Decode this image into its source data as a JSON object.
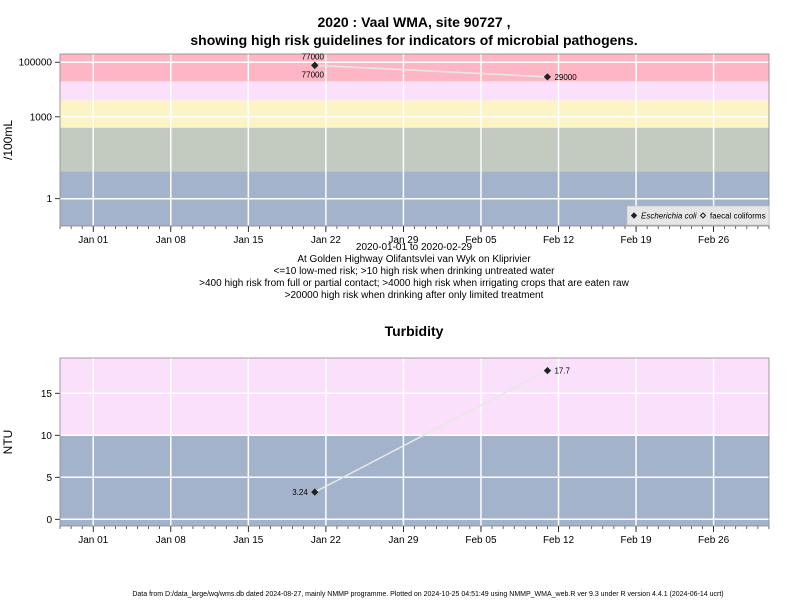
{
  "chart_data": [
    {
      "type": "line",
      "title_line1": "2020 : Vaal WMA, site 90727 ,",
      "title_line2": "showing high risk guidelines for indicators of microbial pathogens.",
      "ylabel": "/100mL",
      "yscale": "log",
      "ylim": [
        0.1,
        200000
      ],
      "yticks": [
        {
          "v": 1,
          "label": "1"
        },
        {
          "v": 1000,
          "label": "1000"
        },
        {
          "v": 100000,
          "label": "100000"
        }
      ],
      "xlim": [
        "2019-12-29",
        "2020-03-02"
      ],
      "xticks": [
        {
          "d": "2020-01-01",
          "label": "Jan 01"
        },
        {
          "d": "2020-01-08",
          "label": "Jan 08"
        },
        {
          "d": "2020-01-15",
          "label": "Jan 15"
        },
        {
          "d": "2020-01-22",
          "label": "Jan 22"
        },
        {
          "d": "2020-01-29",
          "label": "Jan 29"
        },
        {
          "d": "2020-02-05",
          "label": "Feb 05"
        },
        {
          "d": "2020-02-12",
          "label": "Feb 12"
        },
        {
          "d": "2020-02-19",
          "label": "Feb 19"
        },
        {
          "d": "2020-02-26",
          "label": "Feb 26"
        }
      ],
      "bands": [
        {
          "from": 0.1,
          "to": 10,
          "color": "#a3b3cb"
        },
        {
          "from": 10,
          "to": 400,
          "color": "#c3cbc1"
        },
        {
          "from": 400,
          "to": 4000,
          "color": "#fdf4c5"
        },
        {
          "from": 4000,
          "to": 20000,
          "color": "#fbe0fb"
        },
        {
          "from": 20000,
          "to": 200000,
          "color": "#feb6c5"
        }
      ],
      "series": [
        {
          "name": "Escherichia coli",
          "marker": "filled-diamond",
          "points": [
            {
              "d": "2020-01-21",
              "y": 77000,
              "label": "77000"
            },
            {
              "d": "2020-02-11",
              "y": 29000,
              "label": "29000"
            }
          ]
        },
        {
          "name": "faecal coliforms",
          "marker": "open-diamond",
          "points": [
            {
              "d": "2020-01-21",
              "y": 77000,
              "label": "77000"
            }
          ]
        }
      ],
      "legend_position": "bottom-right",
      "subtitle_lines": [
        "2020-01-01 to 2020-02-29",
        "At Golden Highway Olifantsvlei van Wyk on Kliprivier",
        "<=10 low-med risk; >10 high risk when drinking untreated water",
        ">400 high risk from full or partial contact; >4000 high risk when irrigating crops that are eaten raw",
        ">20000 high risk when drinking after only limited treatment"
      ]
    },
    {
      "type": "line",
      "title": "Turbidity",
      "ylabel": "NTU",
      "ylim": [
        -0.8,
        19.2
      ],
      "yticks": [
        {
          "v": 0,
          "label": "0"
        },
        {
          "v": 5,
          "label": "5"
        },
        {
          "v": 10,
          "label": "10"
        },
        {
          "v": 15,
          "label": "15"
        }
      ],
      "xlim": [
        "2019-12-29",
        "2020-03-02"
      ],
      "xticks": [
        {
          "d": "2020-01-01",
          "label": "Jan 01"
        },
        {
          "d": "2020-01-08",
          "label": "Jan 08"
        },
        {
          "d": "2020-01-15",
          "label": "Jan 15"
        },
        {
          "d": "2020-01-22",
          "label": "Jan 22"
        },
        {
          "d": "2020-01-29",
          "label": "Jan 29"
        },
        {
          "d": "2020-02-05",
          "label": "Feb 05"
        },
        {
          "d": "2020-02-12",
          "label": "Feb 12"
        },
        {
          "d": "2020-02-19",
          "label": "Feb 19"
        },
        {
          "d": "2020-02-26",
          "label": "Feb 26"
        }
      ],
      "bands": [
        {
          "from": -0.8,
          "to": 10,
          "color": "#a3b3cb"
        },
        {
          "from": 10,
          "to": 19.2,
          "color": "#fbe0fb"
        }
      ],
      "series": [
        {
          "marker": "filled-diamond",
          "points": [
            {
              "d": "2020-01-21",
              "y": 3.24,
              "label": "3.24"
            },
            {
              "d": "2020-02-11",
              "y": 17.7,
              "label": "17.7"
            }
          ]
        }
      ]
    }
  ],
  "footer": "Data from D:/data_large/wq/wms.db dated 2024-08-27, mainly NMMP programme. Plotted on 2024-10-25 04:51:49 using NMMP_WMA_web.R ver 9.3 under R version 4.4.1 (2024-06-14 ucrt)"
}
